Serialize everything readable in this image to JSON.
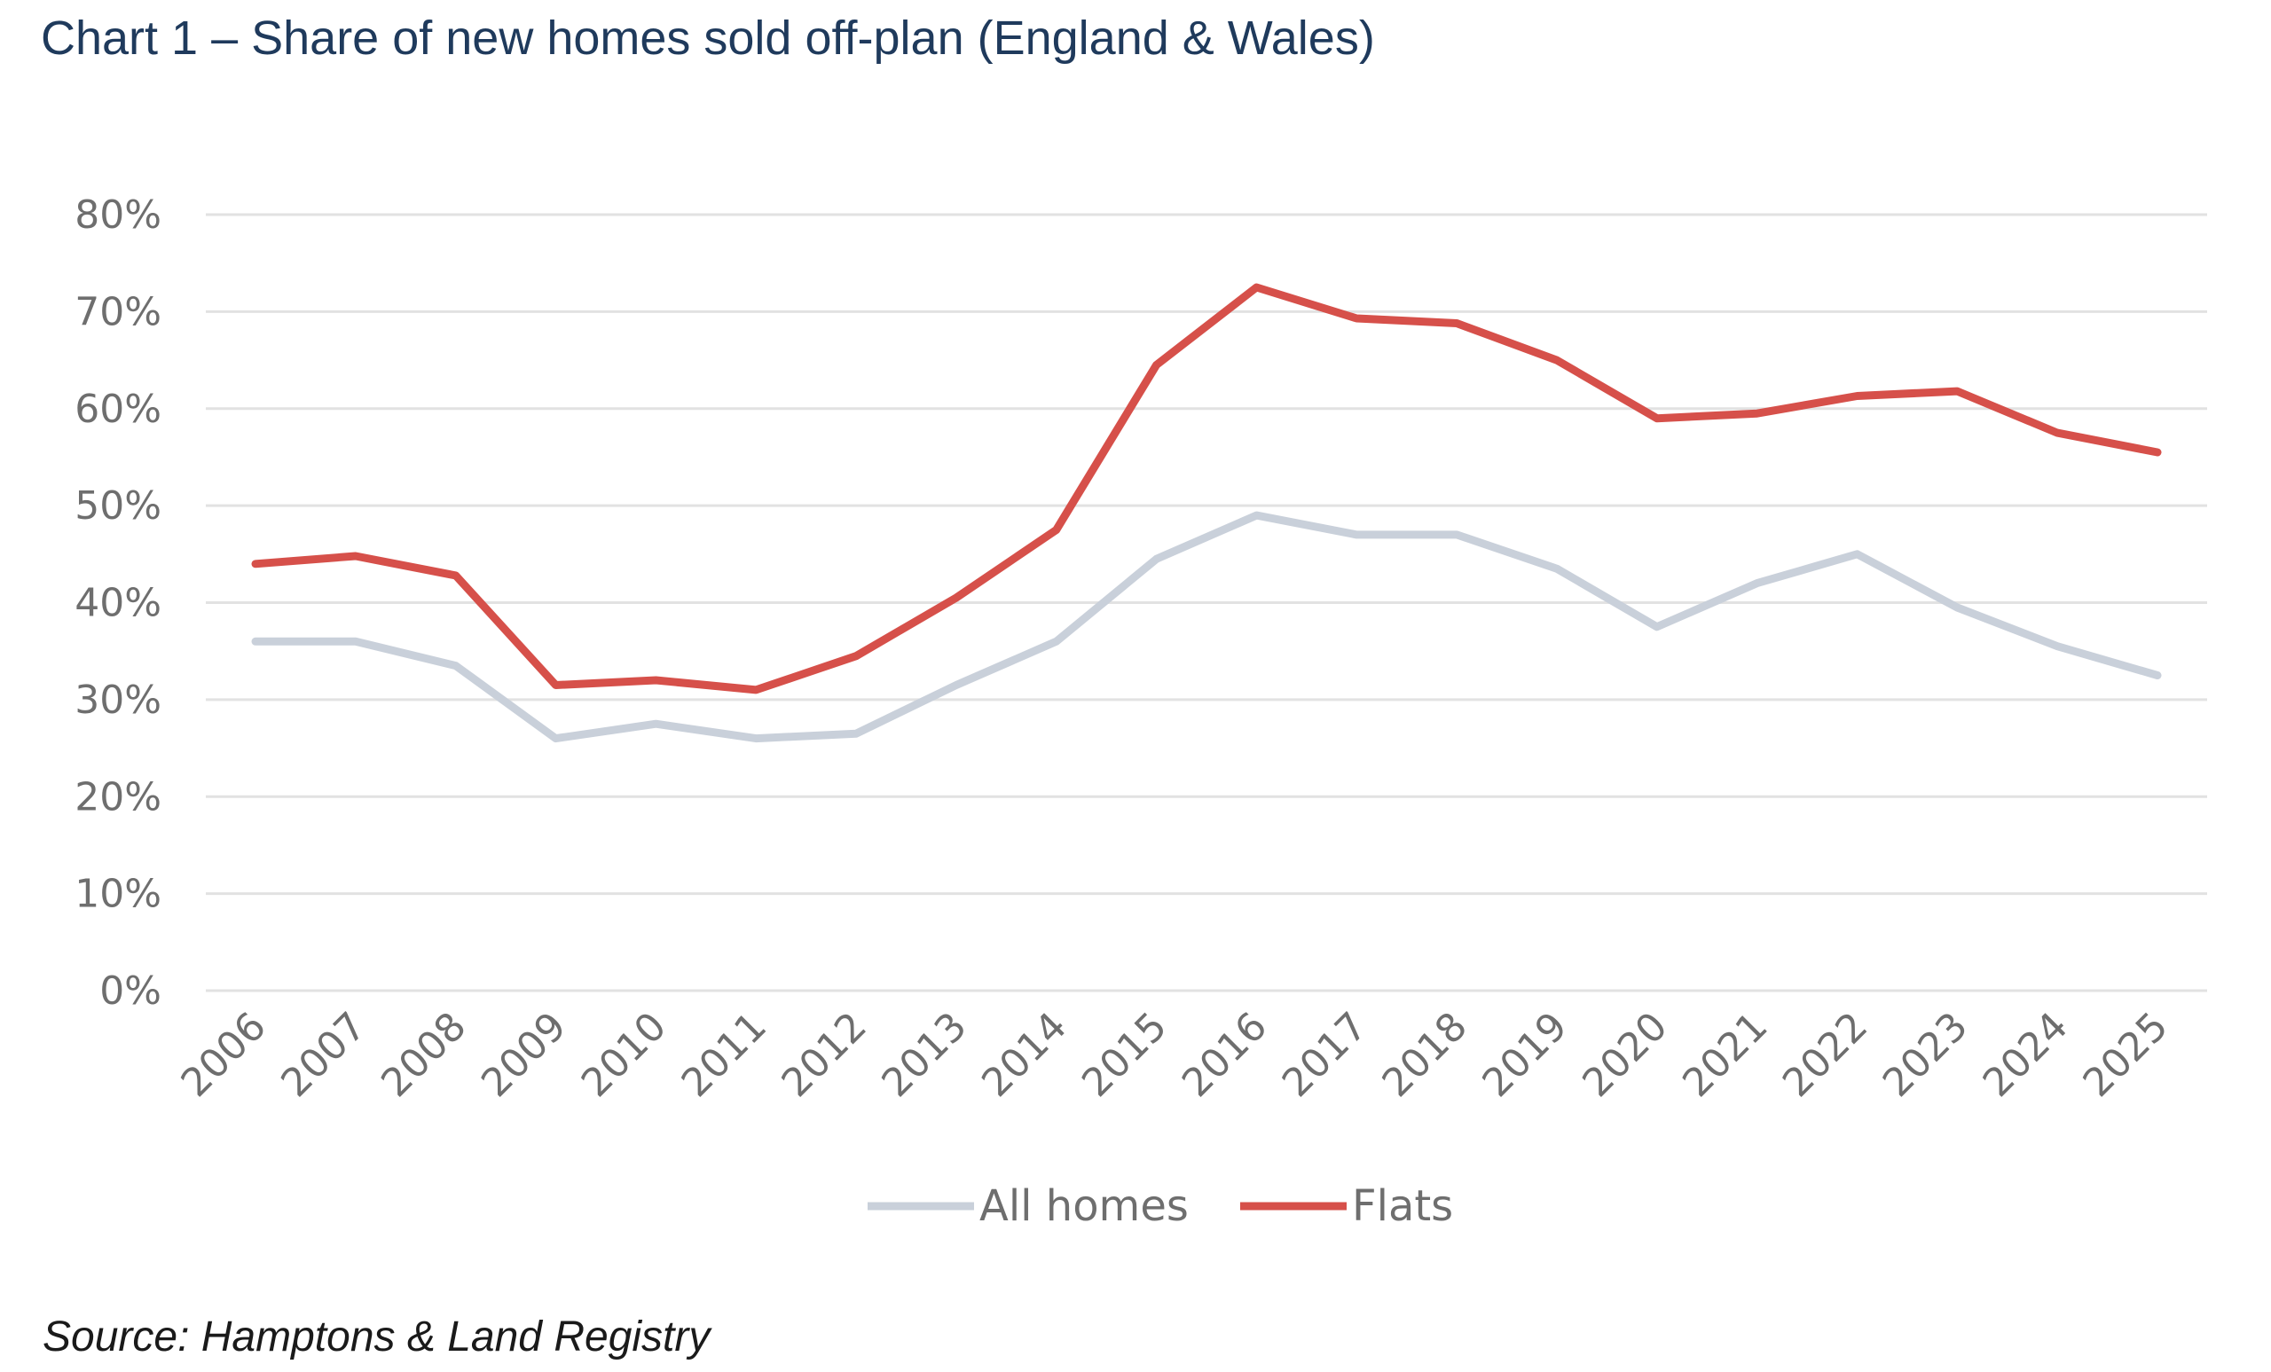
{
  "title": "Chart 1 – Share of new homes sold off-plan (England & Wales)",
  "source": "Source: Hamptons & Land Registry",
  "colors": {
    "all_homes": "#c9d0da",
    "flats": "#d6504a",
    "grid": "#e2e2e2",
    "title": "#1f3a5c"
  },
  "chart_data": {
    "type": "line",
    "x": [
      "2006",
      "2007",
      "2008",
      "2009",
      "2010",
      "2011",
      "2012",
      "2013",
      "2014",
      "2015",
      "2016",
      "2017",
      "2018",
      "2019",
      "2020",
      "2021",
      "2022",
      "2023",
      "2024",
      "2025"
    ],
    "yticks": [
      "0%",
      "10%",
      "20%",
      "30%",
      "40%",
      "50%",
      "60%",
      "70%",
      "80%"
    ],
    "ylim": [
      0,
      80
    ],
    "grid": true,
    "legend_position": "bottom",
    "series": [
      {
        "name": "All homes",
        "color": "#c9d0da",
        "values": [
          36,
          36,
          33.5,
          26,
          27.5,
          26,
          26.5,
          31.5,
          36,
          44.5,
          49,
          47,
          47,
          43.5,
          37.5,
          42,
          45,
          39.5,
          35.5,
          32.5
        ]
      },
      {
        "name": "Flats",
        "color": "#d6504a",
        "values": [
          44,
          44.8,
          42.8,
          31.5,
          32,
          31,
          34.5,
          40.5,
          47.5,
          64.5,
          72.5,
          69.3,
          68.8,
          65,
          59,
          59.5,
          61.3,
          61.8,
          57.5,
          55.5
        ]
      }
    ]
  }
}
